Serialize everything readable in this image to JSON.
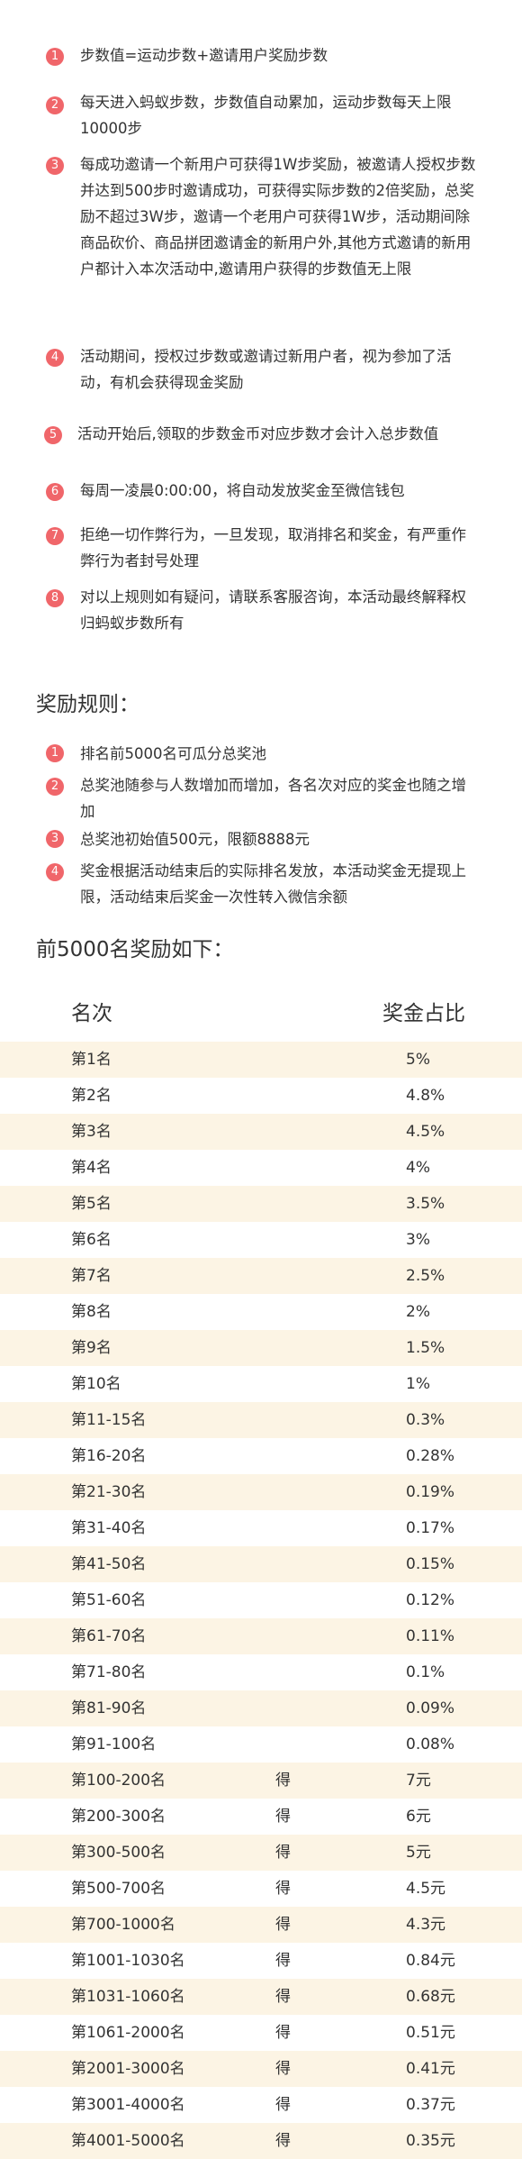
{
  "rules": [
    {
      "n": "1",
      "text": "步数值=运动步数+邀请用户奖励步数"
    },
    {
      "n": "2",
      "text": "每天进入蚂蚁步数，步数值自动累加，运动步数每天上限10000步"
    },
    {
      "n": "3",
      "text": "每成功邀请一个新用户可获得1W步奖励，被邀请人授权步数并达到500步时邀请成功，可获得实际步数的2倍奖励，总奖励不超过3W步，邀请一个老用户可获得1W步，活动期间除商品砍价、商品拼团邀请金的新用户外,其他方式邀请的新用户都计入本次活动中,邀请用户获得的步数值无上限"
    },
    {
      "n": "4",
      "text": "活动期间，授权过步数或邀请过新用户者，视为参加了活动，有机会获得现金奖励"
    },
    {
      "n": "5",
      "text": "活动开始后,领取的步数金币对应步数才会计入总步数值"
    },
    {
      "n": "6",
      "text": "每周一凌晨0:00:00，将自动发放奖金至微信钱包"
    },
    {
      "n": "7",
      "text": "拒绝一切作弊行为，一旦发现，取消排名和奖金，有严重作弊行为者封号处理"
    },
    {
      "n": "8",
      "text": "对以上规则如有疑问，请联系客服咨询，本活动最终解释权归蚂蚁步数所有"
    }
  ],
  "reward_rules_title": "奖励规则：",
  "reward_rules": [
    {
      "n": "1",
      "text": "排名前5000名可瓜分总奖池"
    },
    {
      "n": "2",
      "text": "总奖池随参与人数增加而增加，各名次对应的奖金也随之增加"
    },
    {
      "n": "3",
      "text": "总奖池初始值500元，限额8888元"
    },
    {
      "n": "4",
      "text": "奖金根据活动结束后的实际排名发放，本活动奖金无提现上限，活动结束后奖金一次性转入微信余额"
    }
  ],
  "top_title": "前5000名奖励如下：",
  "table": {
    "headers": {
      "rank": "名次",
      "share": "奖金占比"
    },
    "rows": [
      {
        "rank": "第1名",
        "mid": "",
        "val": "5%"
      },
      {
        "rank": "第2名",
        "mid": "",
        "val": "4.8%"
      },
      {
        "rank": "第3名",
        "mid": "",
        "val": "4.5%"
      },
      {
        "rank": "第4名",
        "mid": "",
        "val": "4%"
      },
      {
        "rank": "第5名",
        "mid": "",
        "val": "3.5%"
      },
      {
        "rank": "第6名",
        "mid": "",
        "val": "3%"
      },
      {
        "rank": "第7名",
        "mid": "",
        "val": "2.5%"
      },
      {
        "rank": "第8名",
        "mid": "",
        "val": "2%"
      },
      {
        "rank": "第9名",
        "mid": "",
        "val": "1.5%"
      },
      {
        "rank": "第10名",
        "mid": "",
        "val": "1%"
      },
      {
        "rank": "第11-15名",
        "mid": "",
        "val": "0.3%"
      },
      {
        "rank": "第16-20名",
        "mid": "",
        "val": "0.28%"
      },
      {
        "rank": "第21-30名",
        "mid": "",
        "val": "0.19%"
      },
      {
        "rank": "第31-40名",
        "mid": "",
        "val": "0.17%"
      },
      {
        "rank": "第41-50名",
        "mid": "",
        "val": "0.15%"
      },
      {
        "rank": "第51-60名",
        "mid": "",
        "val": "0.12%"
      },
      {
        "rank": "第61-70名",
        "mid": "",
        "val": "0.11%"
      },
      {
        "rank": "第71-80名",
        "mid": "",
        "val": "0.1%"
      },
      {
        "rank": "第81-90名",
        "mid": "",
        "val": "0.09%"
      },
      {
        "rank": "第91-100名",
        "mid": "",
        "val": "0.08%"
      },
      {
        "rank": "第100-200名",
        "mid": "得",
        "val": "7元"
      },
      {
        "rank": "第200-300名",
        "mid": "得",
        "val": "6元"
      },
      {
        "rank": "第300-500名",
        "mid": "得",
        "val": "5元"
      },
      {
        "rank": "第500-700名",
        "mid": "得",
        "val": "4.5元"
      },
      {
        "rank": "第700-1000名",
        "mid": "得",
        "val": "4.3元"
      },
      {
        "rank": "第1001-1030名",
        "mid": "得",
        "val": "0.84元"
      },
      {
        "rank": "第1031-1060名",
        "mid": "得",
        "val": "0.68元"
      },
      {
        "rank": "第1061-2000名",
        "mid": "得",
        "val": "0.51元"
      },
      {
        "rank": "第2001-3000名",
        "mid": "得",
        "val": "0.41元"
      },
      {
        "rank": "第3001-4000名",
        "mid": "得",
        "val": "0.37元"
      },
      {
        "rank": "第4001-5000名",
        "mid": "得",
        "val": "0.35元"
      }
    ]
  },
  "colors": {
    "badge": "#f0666a",
    "row_shade": "#fcf4e4",
    "text": "#333333"
  }
}
